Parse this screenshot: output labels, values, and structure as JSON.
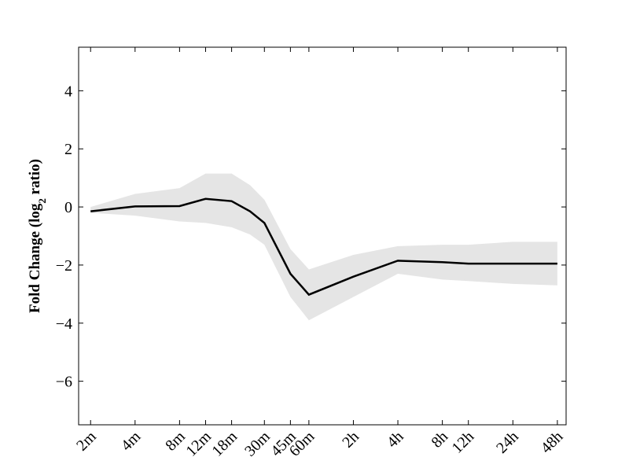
{
  "chart_data": {
    "type": "line",
    "ylabel_parts": [
      "Fold Change (log",
      "2",
      " ratio)"
    ],
    "x": [
      2,
      4,
      8,
      12,
      18,
      24,
      30,
      45,
      60,
      120,
      240,
      480,
      720,
      1440,
      2880
    ],
    "values": [
      -0.15,
      0.02,
      0.03,
      0.28,
      0.2,
      -0.15,
      -0.55,
      -2.3,
      -3.02,
      -2.4,
      -1.85,
      -1.9,
      -1.95,
      -1.95,
      -1.95
    ],
    "band_upper": [
      0,
      0.45,
      0.65,
      1.15,
      1.15,
      0.75,
      0.25,
      -1.45,
      -2.15,
      -1.65,
      -1.35,
      -1.3,
      -1.3,
      -1.2,
      -1.2
    ],
    "band_lower": [
      -0.2,
      -0.3,
      -0.5,
      -0.55,
      -0.7,
      -0.95,
      -1.3,
      -3.1,
      -3.9,
      -3.1,
      -2.3,
      -2.5,
      -2.55,
      -2.65,
      -2.7
    ],
    "color": "#000000",
    "band_color": "#e5e5e5",
    "xscale": "log",
    "xlim": [
      1.66,
      3300
    ],
    "xticks": [
      {
        "value": 2,
        "label": "2m"
      },
      {
        "value": 4,
        "label": "4m"
      },
      {
        "value": 8,
        "label": "8m"
      },
      {
        "value": 12,
        "label": "12m"
      },
      {
        "value": 18,
        "label": "18m"
      },
      {
        "value": 30,
        "label": "30m"
      },
      {
        "value": 45,
        "label": "45m"
      },
      {
        "value": 60,
        "label": "60m"
      },
      {
        "value": 120,
        "label": "2h"
      },
      {
        "value": 240,
        "label": "4h"
      },
      {
        "value": 480,
        "label": "8h"
      },
      {
        "value": 720,
        "label": "12h"
      },
      {
        "value": 1440,
        "label": "24h"
      },
      {
        "value": 2880,
        "label": "48h"
      }
    ],
    "ylim": [
      -7.5,
      5.5
    ],
    "yticks": [
      {
        "value": -6,
        "label": "−6"
      },
      {
        "value": -4,
        "label": "−4"
      },
      {
        "value": -2,
        "label": "−2"
      },
      0,
      2,
      4
    ]
  }
}
